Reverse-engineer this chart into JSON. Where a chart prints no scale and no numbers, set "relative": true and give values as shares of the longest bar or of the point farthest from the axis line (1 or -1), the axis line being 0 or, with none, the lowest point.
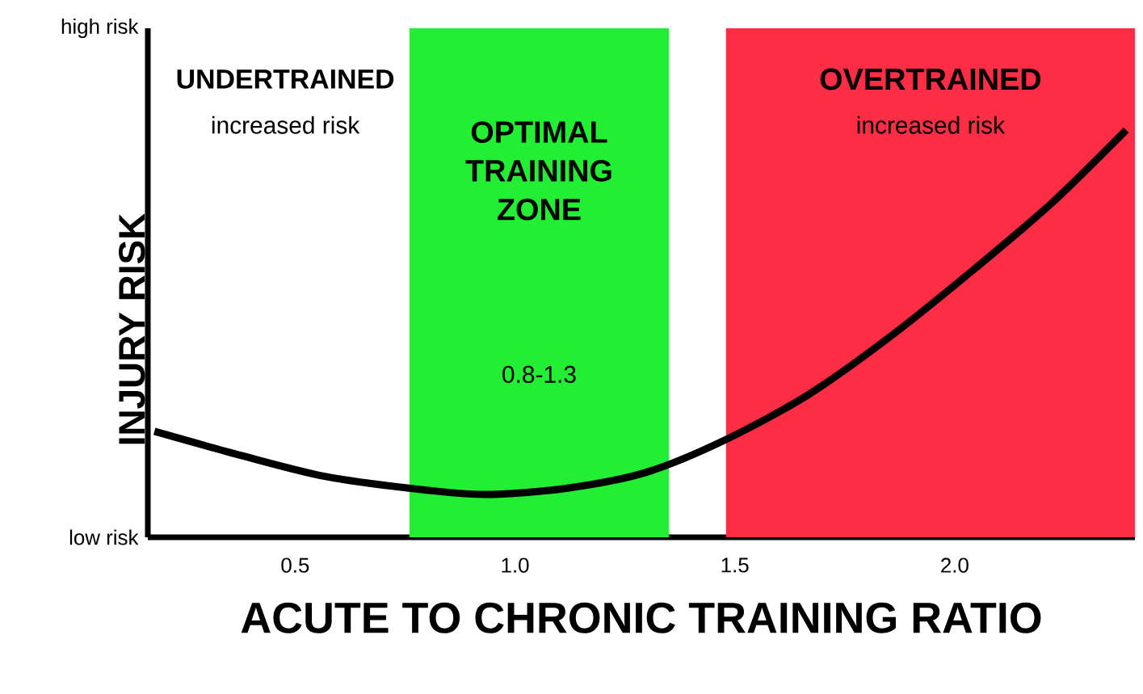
{
  "chart_data": {
    "type": "line",
    "xlabel": "ACUTE TO CHRONIC TRAINING RATIO",
    "ylabel": "INJURY RISK",
    "relative": true,
    "xlim": [
      0.165,
      2.41
    ],
    "xticks": [
      0.5,
      {
        "value": 1.0,
        "label": "1.0"
      },
      1.5,
      {
        "value": 2.0,
        "label": "2.0"
      }
    ],
    "marker": "none",
    "line_style": "solid",
    "series": [
      {
        "color": "#000000",
        "x": [
          0.18,
          0.38,
          0.565,
          0.763,
          0.93,
          1.116,
          1.3,
          1.48,
          1.667,
          1.85,
          2.035,
          2.22,
          2.39
        ],
        "values": [
          0.26,
          0.2,
          0.15,
          0.12,
          0.105,
          0.12,
          0.16,
          0.24,
          0.35,
          0.49,
          0.65,
          0.82,
          1.0
        ]
      }
    ],
    "bands": [
      {
        "axis": "x",
        "from": 0.76,
        "to": 1.35,
        "label": "OPTIMAL TRAINING ZONE",
        "color": "#22ee33"
      },
      {
        "axis": "x",
        "from": 1.48,
        "to": 2.41,
        "label": "OVERTRAINED",
        "color": "#fc2d44"
      }
    ],
    "annotations": [
      "UNDERTRAINED",
      "increased risk",
      "0.8-1.3",
      "increased risk",
      "high risk",
      "low risk"
    ]
  }
}
